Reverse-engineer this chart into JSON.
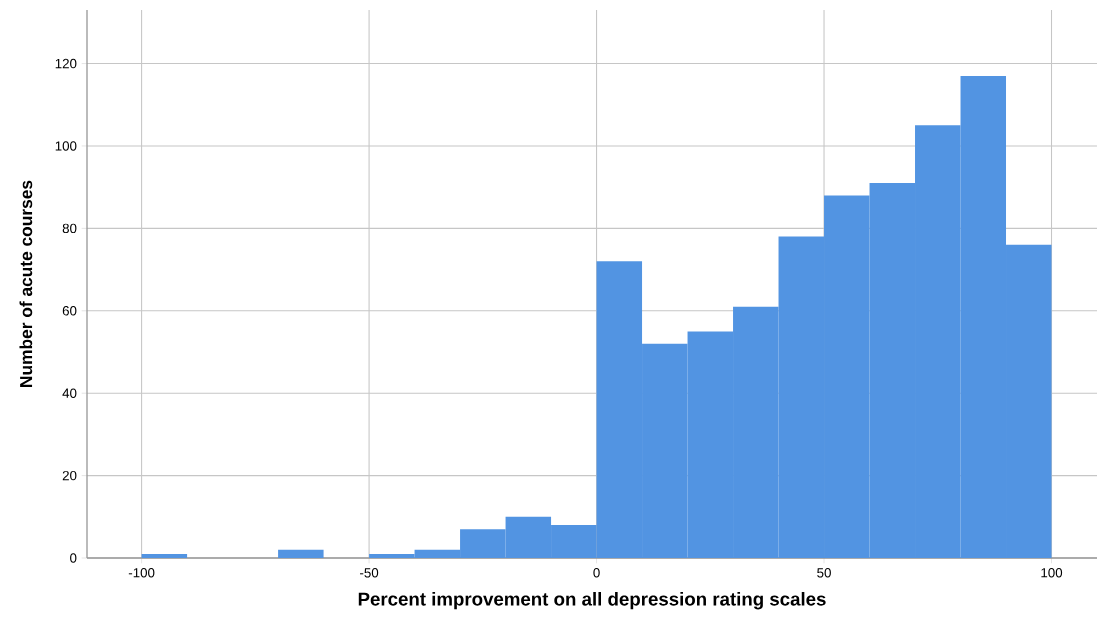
{
  "chart_data": {
    "type": "histogram",
    "xlabel": "Percent improvement on all depression rating scales",
    "ylabel": "Number of acute courses",
    "bins": [
      -100,
      -90,
      -80,
      -70,
      -60,
      -50,
      -40,
      -30,
      -20,
      -10,
      0,
      10,
      20,
      30,
      40,
      50,
      60,
      70,
      80,
      90,
      100
    ],
    "values": [
      1,
      0,
      0,
      2,
      0,
      1,
      2,
      7,
      10,
      8,
      72,
      52,
      55,
      61,
      78,
      88,
      91,
      105,
      117,
      76
    ],
    "color": "#5294e2",
    "xlim": [
      -112,
      110
    ],
    "ylim": [
      0,
      133
    ],
    "xticks": [
      -100,
      -50,
      0,
      50,
      100
    ],
    "yticks": [
      0,
      20,
      40,
      60,
      80,
      100,
      120
    ],
    "grid": true
  }
}
